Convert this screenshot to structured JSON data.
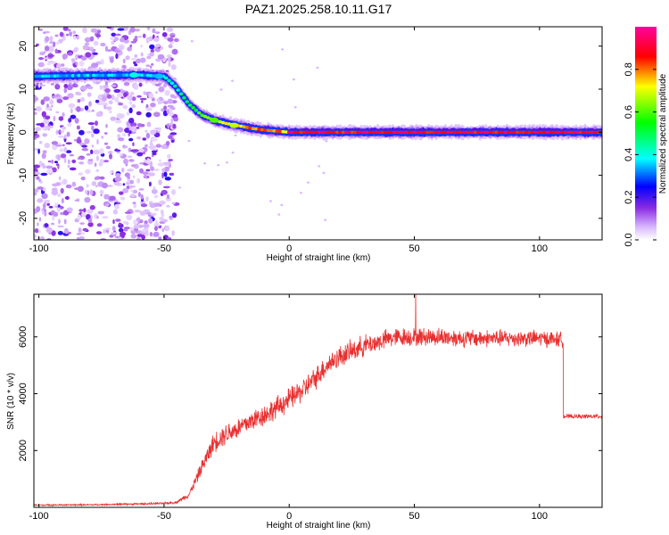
{
  "title": "PAZ1.2025.258.10.11.G17",
  "chart_data": [
    {
      "type": "heatmap",
      "xlabel": "Height of straight line (km)",
      "ylabel": "Frequency (Hz)",
      "xlim": [
        -102,
        125
      ],
      "ylim": [
        -25,
        24.5
      ],
      "xticks": [
        -100,
        -50,
        0,
        50,
        100
      ],
      "yticks": [
        -20,
        -10,
        0,
        10,
        20
      ],
      "xtick_labels": [
        "-100",
        "-50",
        "0",
        "50",
        "100"
      ],
      "ytick_labels": [
        "-20",
        "-10",
        "0",
        "10",
        "20"
      ],
      "colorbar": {
        "label": "Normalized spectral amplitude",
        "range": [
          0,
          1
        ],
        "ticks": [
          0,
          0.2,
          0.4,
          0.6,
          0.8
        ],
        "tick_labels": [
          "0.0",
          "0.2",
          "0.4",
          "0.6",
          "0.8"
        ]
      },
      "ridge": {
        "x": [
          -102,
          -80,
          -60,
          -50,
          -46,
          -40,
          -35,
          -30,
          -25,
          -20,
          -15,
          -10,
          -5,
          0,
          125
        ],
        "freq": [
          13,
          13.2,
          13.3,
          13,
          11,
          6.5,
          4,
          2.8,
          2,
          1.5,
          0.9,
          0.5,
          0.25,
          0,
          0
        ],
        "peak_amplitude": 1.0
      },
      "noise_region": {
        "x_from": -102,
        "x_to": -45,
        "freq_from": -25,
        "freq_to": 24.5
      }
    },
    {
      "type": "line",
      "xlabel": "Height of straight line (km)",
      "ylabel": "SNR (10 * v/v)",
      "xlim": [
        -102,
        125
      ],
      "ylim": [
        0,
        7500
      ],
      "xticks": [
        -100,
        -50,
        0,
        50,
        100
      ],
      "yticks": [
        2000,
        4000,
        6000
      ],
      "xtick_labels": [
        "-100",
        "-50",
        "0",
        "50",
        "100"
      ],
      "ytick_labels": [
        "2000",
        "4000",
        "6000"
      ],
      "color": "#e83030",
      "series": [
        {
          "name": "SNR",
          "x": [
            -102,
            -80,
            -60,
            -50,
            -45,
            -40,
            -35,
            -30,
            -25,
            -20,
            -15,
            -10,
            -5,
            0,
            5,
            10,
            15,
            20,
            25,
            30,
            35,
            40,
            45,
            50,
            60,
            70,
            80,
            90,
            100,
            109,
            109.5,
            115,
            125
          ],
          "y": [
            80,
            90,
            120,
            140,
            180,
            450,
            1400,
            2300,
            2600,
            2800,
            3050,
            3250,
            3500,
            3800,
            4100,
            4500,
            5000,
            5300,
            5500,
            5700,
            5800,
            5950,
            6000,
            6000,
            6000,
            5950,
            5950,
            5950,
            5950,
            5900,
            3200,
            3200,
            3200
          ],
          "noise_amplitude": [
            30,
            30,
            40,
            40,
            50,
            120,
            300,
            420,
            450,
            450,
            450,
            460,
            470,
            480,
            480,
            470,
            460,
            460,
            450,
            440,
            420,
            400,
            390,
            380,
            380,
            370,
            360,
            350,
            340,
            330,
            90,
            90,
            90
          ]
        }
      ]
    }
  ]
}
